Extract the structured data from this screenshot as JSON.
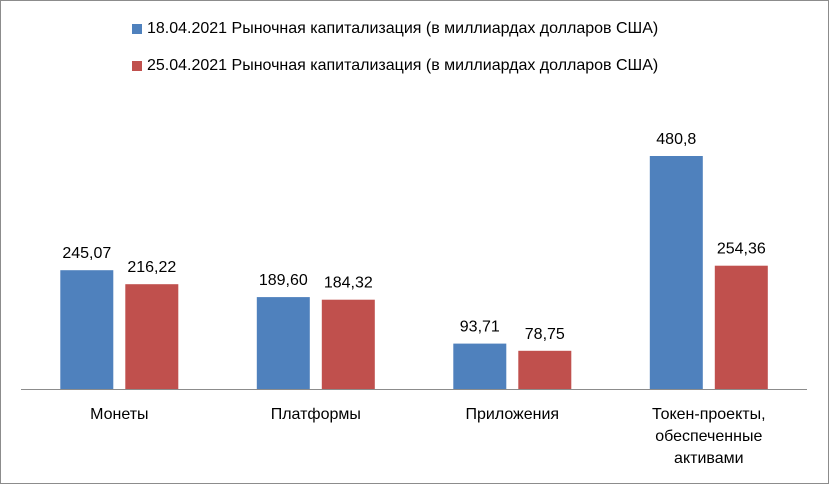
{
  "chart_data": {
    "type": "bar",
    "categories": [
      [
        "Монеты"
      ],
      [
        "Платформы"
      ],
      [
        "Приложения"
      ],
      [
        "Токен-проекты,",
        "обеспеченные",
        "активами"
      ]
    ],
    "series": [
      {
        "name": "18.04.2021 Рыночная капитализация  (в миллиардах долларов США)",
        "color": "#4f81bd",
        "values": [
          245.07,
          189.6,
          93.71,
          480.8
        ],
        "labels": [
          "245,07",
          "189,60",
          "93,71",
          "480,8"
        ]
      },
      {
        "name": "25.04.2021 Рыночная капитализация  (в миллиардах долларов США)",
        "color": "#c0504d",
        "values": [
          216.22,
          184.32,
          78.75,
          254.36
        ],
        "labels": [
          "216,22",
          "184,32",
          "78,75",
          "254,36"
        ]
      }
    ],
    "legend_position": "top",
    "grid": false,
    "ylim": [
      0,
      480.8
    ],
    "y_axis_visible": false
  }
}
